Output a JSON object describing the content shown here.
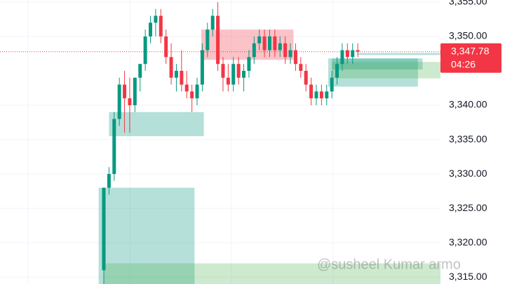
{
  "chart_data": {
    "type": "candlestick",
    "up_color": "#089981",
    "down_color": "#f23645",
    "ylim": [
      3314,
      3355.3
    ],
    "yticks": [
      {
        "value": 3355,
        "label": "3,355.00"
      },
      {
        "value": 3350,
        "label": "3,350.00"
      },
      {
        "value": 3340,
        "label": "3,340.00"
      },
      {
        "value": 3335,
        "label": "3,335.00"
      },
      {
        "value": 3330,
        "label": "3,330.00"
      },
      {
        "value": 3325,
        "label": "3,325.00"
      },
      {
        "value": 3320,
        "label": "3,320.00"
      },
      {
        "value": 3315,
        "label": "3,315.00"
      }
    ],
    "grid": true,
    "candles": [
      [
        3316,
        3328,
        3314,
        3328
      ],
      [
        3328,
        3331,
        3327,
        3330
      ],
      [
        3330,
        3339,
        3329,
        3338
      ],
      [
        3338,
        3344,
        3337,
        3343
      ],
      [
        3343,
        3345,
        3336,
        3341
      ],
      [
        3341,
        3344,
        3336,
        3340
      ],
      [
        3340,
        3344,
        3339,
        3344
      ],
      [
        3344,
        3346,
        3342,
        3346
      ],
      [
        3346,
        3351,
        3345,
        3350
      ],
      [
        3350,
        3353,
        3349,
        3352
      ],
      [
        3352,
        3354,
        3350,
        3353
      ],
      [
        3353,
        3354,
        3349,
        3350
      ],
      [
        3350,
        3351,
        3346,
        3347
      ],
      [
        3347,
        3349,
        3343,
        3344
      ],
      [
        3344,
        3346,
        3342,
        3345
      ],
      [
        3345,
        3348,
        3342,
        3343
      ],
      [
        3343,
        3345,
        3341,
        3342
      ],
      [
        3342,
        3343,
        3339,
        3341
      ],
      [
        3341,
        3344,
        3340,
        3343
      ],
      [
        3343,
        3349,
        3342,
        3348
      ],
      [
        3348,
        3352,
        3347,
        3351
      ],
      [
        3351,
        3354,
        3350,
        3353
      ],
      [
        3353,
        3355,
        3345,
        3346
      ],
      [
        3346,
        3347,
        3342,
        3344
      ],
      [
        3344,
        3346,
        3342,
        3343
      ],
      [
        3343,
        3347,
        3342,
        3346
      ],
      [
        3346,
        3347,
        3343,
        3344
      ],
      [
        3344,
        3346,
        3342,
        3345
      ],
      [
        3345,
        3348,
        3344,
        3347
      ],
      [
        3347,
        3350,
        3346,
        3349
      ],
      [
        3349,
        3351,
        3348,
        3350
      ],
      [
        3350,
        3351,
        3347,
        3348
      ],
      [
        3348,
        3351,
        3347,
        3350
      ],
      [
        3350,
        3351,
        3347,
        3348
      ],
      [
        3348,
        3350,
        3347,
        3349
      ],
      [
        3349,
        3350,
        3346,
        3347
      ],
      [
        3347,
        3349,
        3346,
        3348
      ],
      [
        3348,
        3349,
        3345,
        3346
      ],
      [
        3346,
        3347,
        3344,
        3345
      ],
      [
        3345,
        3346,
        3342,
        3343
      ],
      [
        3343,
        3344,
        3340,
        3341
      ],
      [
        3341,
        3343,
        3340,
        3342
      ],
      [
        3342,
        3343,
        3340,
        3341
      ],
      [
        3341,
        3343,
        3340,
        3342
      ],
      [
        3342,
        3345,
        3341,
        3344
      ],
      [
        3344,
        3347,
        3343,
        3346
      ],
      [
        3346,
        3349,
        3345,
        3348
      ],
      [
        3348,
        3349,
        3346,
        3347
      ],
      [
        3347,
        3349,
        3346,
        3348
      ],
      [
        3348,
        3349,
        3347,
        3347.78
      ]
    ],
    "zones": [
      {
        "x": [
          -1,
          17.5
        ],
        "y": [
          3314,
          3328
        ],
        "color": "rgba(8,153,129,0.3)"
      },
      {
        "x": [
          0,
          65
        ],
        "y": [
          3314,
          3317
        ],
        "color": "rgba(76,175,80,0.28)"
      },
      {
        "x": [
          1,
          19.3
        ],
        "y": [
          3335.5,
          3339
        ],
        "color": "rgba(8,153,129,0.3)"
      },
      {
        "x": [
          18.8,
          36.6
        ],
        "y": [
          3346.6,
          3351
        ],
        "color": "rgba(242,54,69,0.3)"
      },
      {
        "x": [
          43.3,
          60.6
        ],
        "y": [
          3342.7,
          3346.8
        ],
        "color": "rgba(8,153,129,0.3)"
      },
      {
        "x": [
          44,
          61.5
        ],
        "y": [
          3345.2,
          3346.8
        ],
        "color": "rgba(8,153,129,0.3)"
      },
      {
        "x": [
          44,
          65
        ],
        "y": [
          3343.9,
          3346.3
        ],
        "color": "rgba(76,175,80,0.28)"
      },
      {
        "x": [
          49,
          65
        ],
        "y": [
          3347.3,
          3347.6
        ],
        "color": "rgba(8,153,129,0.3)"
      }
    ],
    "last_price": 3347.78,
    "last_price_label": "3,347.78",
    "countdown": "04:26",
    "watermark": "@susheel Kumar armo"
  }
}
